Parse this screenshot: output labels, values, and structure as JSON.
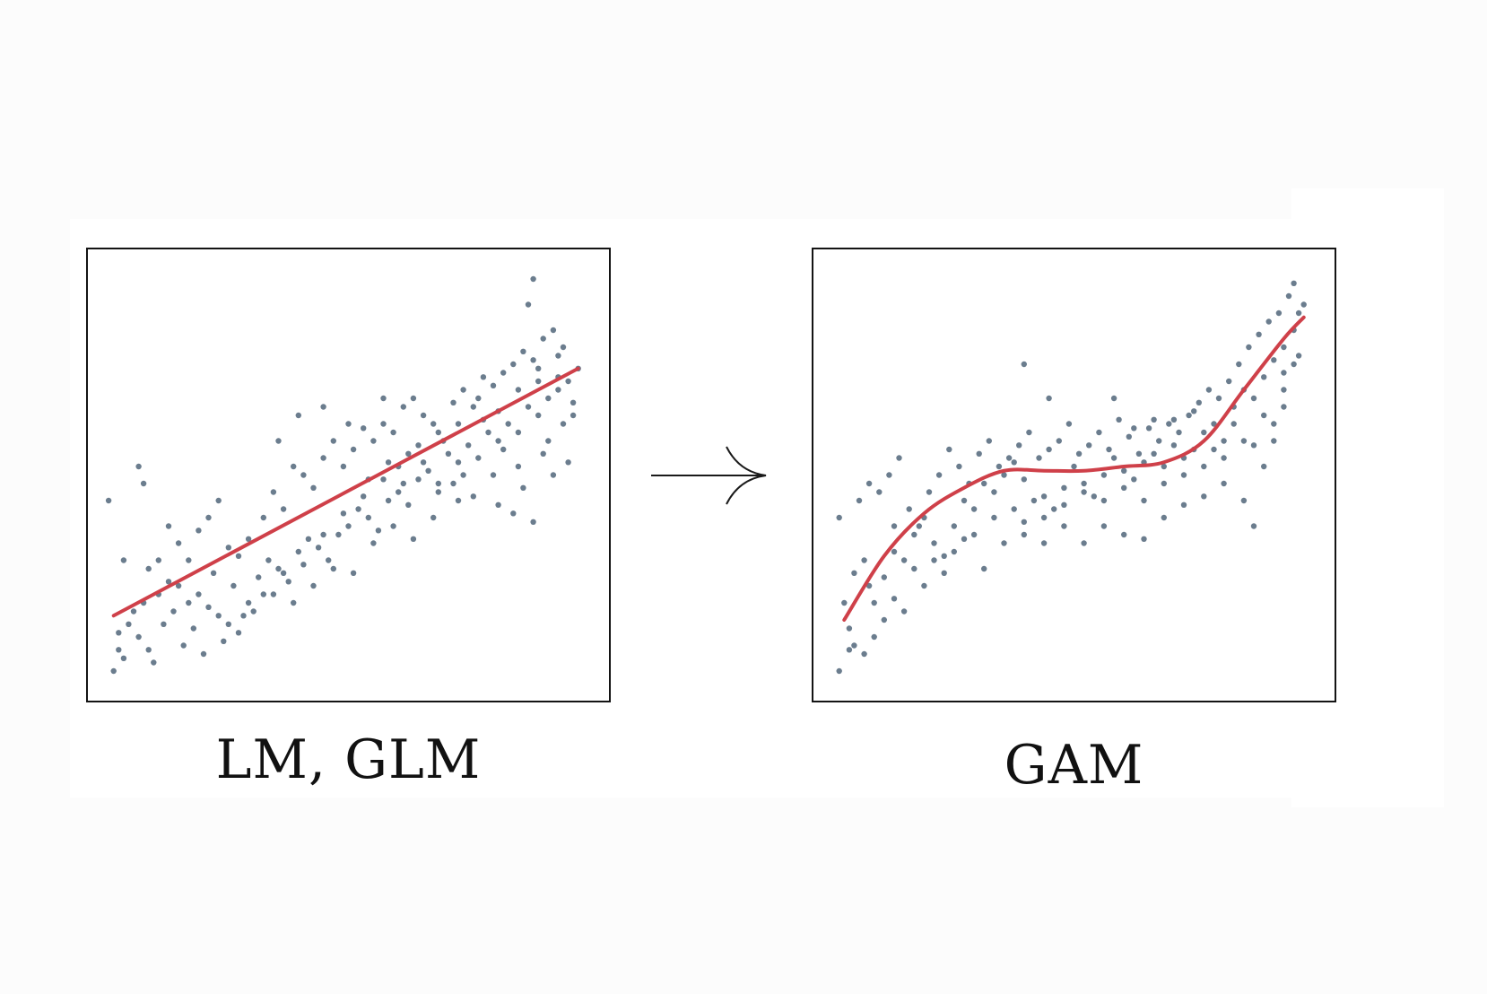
{
  "figure": {
    "colors": {
      "points": "#6b7d8e",
      "fit_line": "#cf4049",
      "frame": "#141414",
      "background": "#ffffff"
    },
    "arrow_icon": "right-arrow-icon"
  },
  "chart_data": [
    {
      "type": "scatter",
      "caption": "LM, GLM",
      "title": "",
      "xlabel": "",
      "ylabel": "",
      "xlim": [
        0,
        100
      ],
      "ylim": [
        0,
        100
      ],
      "grid": false,
      "axes_ticks": false,
      "fit": {
        "kind": "linear",
        "x": [
          3,
          96
        ],
        "y": [
          17,
          75
        ]
      },
      "points": [
        [
          3,
          4
        ],
        [
          4,
          9
        ],
        [
          5,
          7
        ],
        [
          4,
          13
        ],
        [
          6,
          15
        ],
        [
          8,
          12
        ],
        [
          10,
          9
        ],
        [
          11,
          6
        ],
        [
          7,
          18
        ],
        [
          9,
          20
        ],
        [
          12,
          22
        ],
        [
          14,
          25
        ],
        [
          16,
          24
        ],
        [
          18,
          20
        ],
        [
          20,
          22
        ],
        [
          22,
          19
        ],
        [
          24,
          17
        ],
        [
          26,
          15
        ],
        [
          28,
          13
        ],
        [
          30,
          20
        ],
        [
          32,
          26
        ],
        [
          34,
          30
        ],
        [
          36,
          28
        ],
        [
          38,
          25
        ],
        [
          40,
          32
        ],
        [
          42,
          35
        ],
        [
          44,
          33
        ],
        [
          46,
          30
        ],
        [
          48,
          36
        ],
        [
          50,
          38
        ],
        [
          52,
          42
        ],
        [
          54,
          40
        ],
        [
          56,
          37
        ],
        [
          58,
          44
        ],
        [
          60,
          46
        ],
        [
          62,
          43
        ],
        [
          64,
          49
        ],
        [
          66,
          51
        ],
        [
          68,
          48
        ],
        [
          70,
          55
        ],
        [
          72,
          53
        ],
        [
          74,
          57
        ],
        [
          76,
          54
        ],
        [
          78,
          60
        ],
        [
          80,
          58
        ],
        [
          82,
          62
        ],
        [
          84,
          60
        ],
        [
          86,
          66
        ],
        [
          88,
          64
        ],
        [
          90,
          68
        ],
        [
          92,
          70
        ],
        [
          94,
          72
        ],
        [
          95,
          67
        ],
        [
          96,
          75
        ],
        [
          2,
          44
        ],
        [
          8,
          52
        ],
        [
          9,
          48
        ],
        [
          14,
          38
        ],
        [
          16,
          34
        ],
        [
          18,
          30
        ],
        [
          20,
          37
        ],
        [
          22,
          40
        ],
        [
          24,
          44
        ],
        [
          26,
          33
        ],
        [
          28,
          31
        ],
        [
          30,
          35
        ],
        [
          33,
          40
        ],
        [
          35,
          46
        ],
        [
          37,
          42
        ],
        [
          39,
          52
        ],
        [
          41,
          50
        ],
        [
          43,
          47
        ],
        [
          45,
          54
        ],
        [
          47,
          58
        ],
        [
          49,
          52
        ],
        [
          51,
          56
        ],
        [
          53,
          61
        ],
        [
          55,
          58
        ],
        [
          57,
          62
        ],
        [
          59,
          60
        ],
        [
          61,
          66
        ],
        [
          63,
          68
        ],
        [
          65,
          64
        ],
        [
          67,
          62
        ],
        [
          69,
          58
        ],
        [
          71,
          67
        ],
        [
          73,
          70
        ],
        [
          75,
          66
        ],
        [
          77,
          73
        ],
        [
          79,
          71
        ],
        [
          81,
          74
        ],
        [
          83,
          76
        ],
        [
          85,
          79
        ],
        [
          87,
          77
        ],
        [
          89,
          82
        ],
        [
          91,
          84
        ],
        [
          93,
          80
        ],
        [
          10,
          28
        ],
        [
          12,
          30
        ],
        [
          15,
          18
        ],
        [
          19,
          14
        ],
        [
          23,
          27
        ],
        [
          27,
          24
        ],
        [
          31,
          18
        ],
        [
          35,
          22
        ],
        [
          39,
          20
        ],
        [
          43,
          24
        ],
        [
          47,
          28
        ],
        [
          51,
          27
        ],
        [
          55,
          34
        ],
        [
          59,
          38
        ],
        [
          63,
          35
        ],
        [
          67,
          40
        ],
        [
          71,
          48
        ],
        [
          75,
          45
        ],
        [
          79,
          50
        ],
        [
          83,
          41
        ],
        [
          87,
          39
        ],
        [
          91,
          50
        ],
        [
          94,
          53
        ],
        [
          86,
          90
        ],
        [
          87,
          96
        ],
        [
          57,
          68
        ],
        [
          62,
          55
        ],
        [
          72,
          44
        ],
        [
          80,
          43
        ],
        [
          84,
          52
        ],
        [
          88,
          72
        ],
        [
          90,
          58
        ],
        [
          92,
          78
        ],
        [
          36,
          58
        ],
        [
          40,
          64
        ],
        [
          45,
          66
        ],
        [
          50,
          62
        ],
        [
          54,
          49
        ],
        [
          58,
          53
        ],
        [
          61,
          48
        ],
        [
          65,
          53
        ],
        [
          68,
          46
        ],
        [
          73,
          50
        ],
        [
          77,
          63
        ],
        [
          81,
          56
        ],
        [
          85,
          47
        ],
        [
          89,
          55
        ],
        [
          93,
          62
        ],
        [
          5,
          30
        ],
        [
          13,
          15
        ],
        [
          17,
          10
        ],
        [
          21,
          8
        ],
        [
          25,
          11
        ],
        [
          29,
          17
        ],
        [
          33,
          22
        ],
        [
          37,
          27
        ],
        [
          41,
          29
        ],
        [
          45,
          36
        ],
        [
          49,
          41
        ],
        [
          53,
          45
        ],
        [
          57,
          49
        ],
        [
          60,
          52
        ],
        [
          64,
          57
        ],
        [
          68,
          60
        ],
        [
          72,
          62
        ],
        [
          76,
          68
        ],
        [
          80,
          65
        ],
        [
          84,
          70
        ],
        [
          88,
          75
        ],
        [
          92,
          73
        ],
        [
          95,
          64
        ]
      ]
    },
    {
      "type": "scatter",
      "caption": "GAM",
      "title": "",
      "xlabel": "",
      "ylabel": "",
      "xlim": [
        0,
        100
      ],
      "ylim": [
        0,
        100
      ],
      "grid": false,
      "axes_ticks": false,
      "fit": {
        "kind": "smooth",
        "x": [
          4,
          12,
          20,
          28,
          36,
          44,
          52,
          60,
          68,
          76,
          84,
          92,
          96
        ],
        "y": [
          16,
          31,
          41,
          47,
          51,
          51,
          51,
          52,
          53,
          58,
          70,
          82,
          87
        ]
      },
      "points": [
        [
          3,
          4
        ],
        [
          5,
          9
        ],
        [
          6,
          10
        ],
        [
          5,
          14
        ],
        [
          4,
          20
        ],
        [
          6,
          27
        ],
        [
          8,
          30
        ],
        [
          9,
          24
        ],
        [
          10,
          20
        ],
        [
          12,
          26
        ],
        [
          14,
          32
        ],
        [
          16,
          30
        ],
        [
          18,
          36
        ],
        [
          20,
          40
        ],
        [
          22,
          34
        ],
        [
          24,
          31
        ],
        [
          26,
          38
        ],
        [
          28,
          44
        ],
        [
          30,
          42
        ],
        [
          32,
          48
        ],
        [
          34,
          46
        ],
        [
          36,
          50
        ],
        [
          38,
          53
        ],
        [
          40,
          49
        ],
        [
          42,
          44
        ],
        [
          44,
          40
        ],
        [
          46,
          42
        ],
        [
          48,
          47
        ],
        [
          50,
          52
        ],
        [
          52,
          48
        ],
        [
          54,
          45
        ],
        [
          56,
          50
        ],
        [
          58,
          54
        ],
        [
          60,
          51
        ],
        [
          62,
          49
        ],
        [
          64,
          53
        ],
        [
          66,
          55
        ],
        [
          68,
          52
        ],
        [
          70,
          57
        ],
        [
          72,
          54
        ],
        [
          74,
          56
        ],
        [
          76,
          60
        ],
        [
          78,
          62
        ],
        [
          80,
          58
        ],
        [
          82,
          66
        ],
        [
          84,
          70
        ],
        [
          86,
          68
        ],
        [
          88,
          73
        ],
        [
          90,
          77
        ],
        [
          92,
          80
        ],
        [
          94,
          84
        ],
        [
          95,
          88
        ],
        [
          96,
          90
        ],
        [
          3,
          40
        ],
        [
          7,
          44
        ],
        [
          9,
          48
        ],
        [
          11,
          46
        ],
        [
          13,
          50
        ],
        [
          15,
          54
        ],
        [
          17,
          42
        ],
        [
          19,
          38
        ],
        [
          21,
          46
        ],
        [
          23,
          50
        ],
        [
          25,
          56
        ],
        [
          27,
          52
        ],
        [
          29,
          48
        ],
        [
          31,
          55
        ],
        [
          33,
          58
        ],
        [
          35,
          52
        ],
        [
          37,
          54
        ],
        [
          39,
          57
        ],
        [
          41,
          60
        ],
        [
          43,
          54
        ],
        [
          45,
          56
        ],
        [
          47,
          58
        ],
        [
          49,
          62
        ],
        [
          51,
          55
        ],
        [
          53,
          57
        ],
        [
          55,
          60
        ],
        [
          57,
          56
        ],
        [
          59,
          63
        ],
        [
          61,
          59
        ],
        [
          63,
          55
        ],
        [
          65,
          61
        ],
        [
          67,
          58
        ],
        [
          69,
          62
        ],
        [
          71,
          60
        ],
        [
          73,
          64
        ],
        [
          75,
          67
        ],
        [
          77,
          70
        ],
        [
          79,
          68
        ],
        [
          81,
          72
        ],
        [
          83,
          76
        ],
        [
          85,
          80
        ],
        [
          87,
          83
        ],
        [
          89,
          86
        ],
        [
          91,
          88
        ],
        [
          93,
          92
        ],
        [
          94,
          95
        ],
        [
          14,
          38
        ],
        [
          18,
          28
        ],
        [
          22,
          30
        ],
        [
          26,
          32
        ],
        [
          30,
          36
        ],
        [
          34,
          40
        ],
        [
          38,
          42
        ],
        [
          40,
          36
        ],
        [
          44,
          34
        ],
        [
          48,
          38
        ],
        [
          52,
          34
        ],
        [
          56,
          38
        ],
        [
          60,
          36
        ],
        [
          64,
          35
        ],
        [
          68,
          40
        ],
        [
          72,
          43
        ],
        [
          76,
          45
        ],
        [
          80,
          48
        ],
        [
          84,
          44
        ],
        [
          86,
          38
        ],
        [
          88,
          52
        ],
        [
          90,
          62
        ],
        [
          92,
          74
        ],
        [
          95,
          78
        ],
        [
          40,
          76
        ],
        [
          45,
          68
        ],
        [
          58,
          68
        ],
        [
          62,
          61
        ],
        [
          66,
          63
        ],
        [
          70,
          63
        ],
        [
          74,
          65
        ],
        [
          78,
          56
        ],
        [
          82,
          62
        ],
        [
          86,
          57
        ],
        [
          90,
          58
        ],
        [
          92,
          66
        ],
        [
          8,
          8
        ],
        [
          10,
          12
        ],
        [
          12,
          16
        ],
        [
          14,
          21
        ],
        [
          16,
          18
        ],
        [
          20,
          24
        ],
        [
          24,
          27
        ],
        [
          28,
          35
        ],
        [
          32,
          28
        ],
        [
          36,
          34
        ],
        [
          40,
          39
        ],
        [
          44,
          45
        ],
        [
          48,
          43
        ],
        [
          52,
          46
        ],
        [
          56,
          44
        ],
        [
          60,
          47
        ],
        [
          64,
          44
        ],
        [
          68,
          48
        ],
        [
          72,
          50
        ],
        [
          76,
          52
        ],
        [
          80,
          54
        ],
        [
          84,
          58
        ],
        [
          88,
          64
        ],
        [
          92,
          70
        ],
        [
          94,
          76
        ]
      ]
    }
  ]
}
